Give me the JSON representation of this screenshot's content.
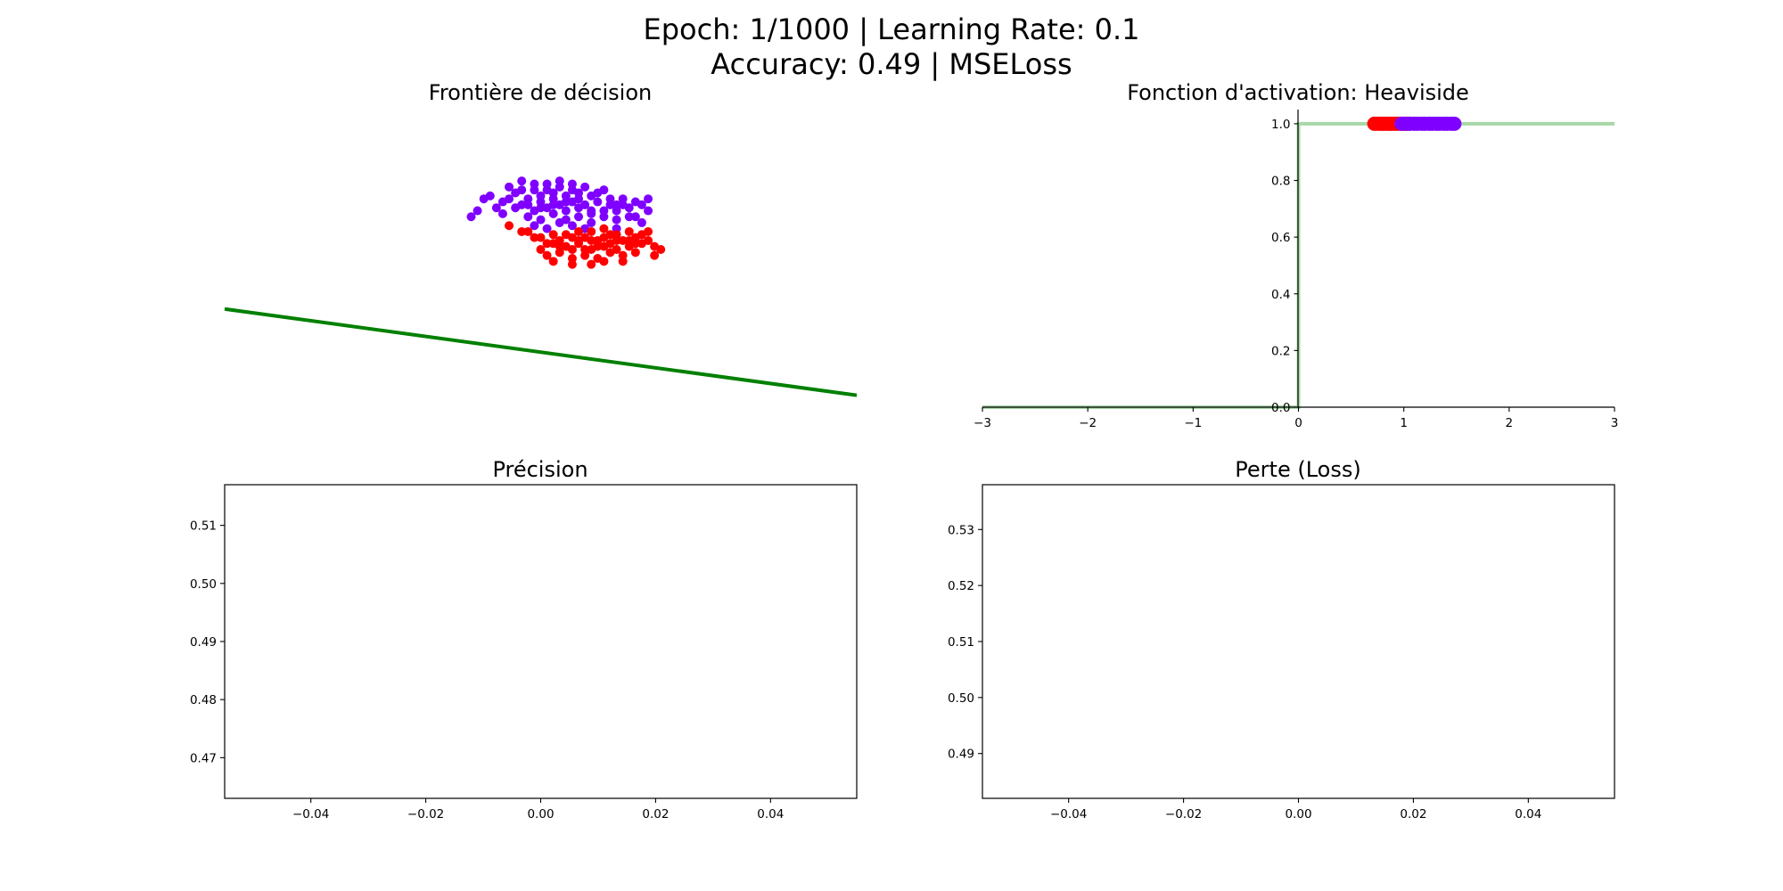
{
  "header": {
    "line1": "Epoch: 1/1000 | Learning Rate: 0.1",
    "line2": "Accuracy: 0.49 | MSELoss"
  },
  "colors": {
    "class_0": "#ff0000",
    "class_1": "#7f00ff",
    "boundary": "#008000",
    "activation_curve": "#a8d8a8",
    "axis": "#000000"
  },
  "chart_data": [
    {
      "type": "scatter",
      "title": "Frontière de décision",
      "axis_visible": false,
      "xlim": [
        0,
        1
      ],
      "ylim": [
        0,
        1
      ],
      "series": [
        {
          "color": "#7f00ff",
          "points": [
            [
              0.42,
              0.71
            ],
            [
              0.44,
              0.69
            ],
            [
              0.45,
              0.74
            ],
            [
              0.46,
              0.72
            ],
            [
              0.47,
              0.76
            ],
            [
              0.47,
              0.68
            ],
            [
              0.48,
              0.7
            ],
            [
              0.49,
              0.73
            ],
            [
              0.49,
              0.66
            ],
            [
              0.5,
              0.71
            ],
            [
              0.5,
              0.69
            ],
            [
              0.51,
              0.75
            ],
            [
              0.51,
              0.67
            ],
            [
              0.52,
              0.72
            ],
            [
              0.52,
              0.7
            ],
            [
              0.53,
              0.74
            ],
            [
              0.53,
              0.68
            ],
            [
              0.54,
              0.71
            ],
            [
              0.54,
              0.66
            ],
            [
              0.55,
              0.73
            ],
            [
              0.55,
              0.69
            ],
            [
              0.56,
              0.7
            ],
            [
              0.56,
              0.72
            ],
            [
              0.57,
              0.68
            ],
            [
              0.58,
              0.71
            ],
            [
              0.58,
              0.65
            ],
            [
              0.59,
              0.69
            ],
            [
              0.6,
              0.73
            ],
            [
              0.61,
              0.68
            ],
            [
              0.62,
              0.66
            ],
            [
              0.63,
              0.7
            ],
            [
              0.64,
              0.67
            ],
            [
              0.65,
              0.69
            ],
            [
              0.66,
              0.68
            ],
            [
              0.67,
              0.66
            ],
            [
              0.44,
              0.65
            ],
            [
              0.46,
              0.67
            ],
            [
              0.48,
              0.64
            ],
            [
              0.5,
              0.63
            ],
            [
              0.52,
              0.65
            ],
            [
              0.54,
              0.63
            ],
            [
              0.56,
              0.64
            ],
            [
              0.58,
              0.62
            ],
            [
              0.6,
              0.64
            ],
            [
              0.62,
              0.63
            ],
            [
              0.64,
              0.64
            ],
            [
              0.66,
              0.62
            ],
            [
              0.43,
              0.67
            ],
            [
              0.45,
              0.7
            ],
            [
              0.47,
              0.73
            ],
            [
              0.49,
              0.75
            ],
            [
              0.51,
              0.73
            ],
            [
              0.53,
              0.76
            ],
            [
              0.55,
              0.75
            ],
            [
              0.57,
              0.74
            ],
            [
              0.59,
              0.72
            ],
            [
              0.61,
              0.7
            ],
            [
              0.63,
              0.68
            ],
            [
              0.41,
              0.7
            ],
            [
              0.4,
              0.66
            ],
            [
              0.39,
              0.64
            ],
            [
              0.48,
              0.68
            ],
            [
              0.5,
              0.67
            ],
            [
              0.52,
              0.68
            ],
            [
              0.54,
              0.69
            ],
            [
              0.56,
              0.67
            ],
            [
              0.58,
              0.66
            ],
            [
              0.6,
              0.66
            ],
            [
              0.62,
              0.68
            ],
            [
              0.65,
              0.64
            ],
            [
              0.67,
              0.7
            ],
            [
              0.49,
              0.61
            ],
            [
              0.51,
              0.6
            ],
            [
              0.53,
              0.62
            ],
            [
              0.55,
              0.61
            ],
            [
              0.57,
              0.6
            ],
            [
              0.62,
              0.6
            ]
          ]
        },
        {
          "color": "#ff0000",
          "points": [
            [
              0.45,
              0.61
            ],
            [
              0.48,
              0.59
            ],
            [
              0.5,
              0.57
            ],
            [
              0.51,
              0.55
            ],
            [
              0.52,
              0.58
            ],
            [
              0.53,
              0.56
            ],
            [
              0.54,
              0.54
            ],
            [
              0.55,
              0.57
            ],
            [
              0.56,
              0.55
            ],
            [
              0.57,
              0.53
            ],
            [
              0.58,
              0.56
            ],
            [
              0.59,
              0.54
            ],
            [
              0.6,
              0.57
            ],
            [
              0.61,
              0.55
            ],
            [
              0.62,
              0.53
            ],
            [
              0.63,
              0.56
            ],
            [
              0.64,
              0.54
            ],
            [
              0.65,
              0.57
            ],
            [
              0.66,
              0.55
            ],
            [
              0.67,
              0.56
            ],
            [
              0.68,
              0.54
            ],
            [
              0.68,
              0.51
            ],
            [
              0.51,
              0.51
            ],
            [
              0.53,
              0.52
            ],
            [
              0.55,
              0.5
            ],
            [
              0.57,
              0.51
            ],
            [
              0.59,
              0.5
            ],
            [
              0.61,
              0.52
            ],
            [
              0.63,
              0.51
            ],
            [
              0.65,
              0.52
            ],
            [
              0.52,
              0.55
            ],
            [
              0.54,
              0.58
            ],
            [
              0.56,
              0.59
            ],
            [
              0.58,
              0.59
            ],
            [
              0.6,
              0.6
            ],
            [
              0.62,
              0.58
            ],
            [
              0.64,
              0.59
            ],
            [
              0.66,
              0.58
            ],
            [
              0.67,
              0.59
            ],
            [
              0.49,
              0.57
            ],
            [
              0.47,
              0.59
            ],
            [
              0.5,
              0.53
            ],
            [
              0.52,
              0.49
            ],
            [
              0.55,
              0.48
            ],
            [
              0.58,
              0.48
            ],
            [
              0.6,
              0.49
            ],
            [
              0.63,
              0.49
            ],
            [
              0.56,
              0.56
            ],
            [
              0.58,
              0.53
            ],
            [
              0.6,
              0.54
            ],
            [
              0.62,
              0.56
            ],
            [
              0.64,
              0.56
            ],
            [
              0.53,
              0.54
            ],
            [
              0.57,
              0.57
            ],
            [
              0.61,
              0.58
            ],
            [
              0.65,
              0.55
            ],
            [
              0.59,
              0.56
            ],
            [
              0.55,
              0.53
            ],
            [
              0.69,
              0.53
            ]
          ]
        },
        {
          "color": "#008000",
          "line": [
            [
              0.0,
              0.33
            ],
            [
              1.0,
              0.04
            ]
          ]
        }
      ]
    },
    {
      "type": "line",
      "title": "Fonction d'activation: Heaviside",
      "xlim": [
        -3,
        3
      ],
      "ylim": [
        0,
        1.05
      ],
      "xticks": [
        "−3",
        "−2",
        "−1",
        "0",
        "1",
        "2",
        "3"
      ],
      "yticks": [
        "0.0",
        "0.2",
        "0.4",
        "0.6",
        "0.8",
        "1.0"
      ],
      "series": [
        {
          "color": "#a8d8a8",
          "x": [
            -3,
            0,
            0,
            3
          ],
          "y": [
            0,
            0,
            1,
            1
          ]
        },
        {
          "color": "#ff0000",
          "x": [
            0.72,
            0.75,
            0.78,
            0.8,
            0.82,
            0.85,
            0.87,
            0.89,
            0.92,
            0.94,
            0.97,
            1.0,
            1.02,
            1.05
          ],
          "y": [
            1,
            1,
            1,
            1,
            1,
            1,
            1,
            1,
            1,
            1,
            1,
            1,
            1,
            1
          ]
        },
        {
          "color": "#7f00ff",
          "x": [
            0.98,
            1.02,
            1.06,
            1.1,
            1.13,
            1.17,
            1.2,
            1.24,
            1.27,
            1.31,
            1.34,
            1.38,
            1.41,
            1.45,
            1.48
          ],
          "y": [
            1,
            1,
            1,
            1,
            1,
            1,
            1,
            1,
            1,
            1,
            1,
            1,
            1,
            1,
            1
          ]
        }
      ]
    },
    {
      "type": "line",
      "title": "Précision",
      "xlim": [
        -0.055,
        0.055
      ],
      "ylim": [
        0.463,
        0.517
      ],
      "xticks": [
        "−0.04",
        "−0.02",
        "0.00",
        "0.02",
        "0.04"
      ],
      "yticks": [
        "0.47",
        "0.48",
        "0.49",
        "0.50",
        "0.51"
      ],
      "series": []
    },
    {
      "type": "line",
      "title": "Perte (Loss)",
      "xlim": [
        -0.055,
        0.055
      ],
      "ylim": [
        0.482,
        0.538
      ],
      "xticks": [
        "−0.04",
        "−0.02",
        "0.00",
        "0.02",
        "0.04"
      ],
      "yticks": [
        "0.49",
        "0.50",
        "0.51",
        "0.52",
        "0.53"
      ],
      "series": []
    }
  ]
}
